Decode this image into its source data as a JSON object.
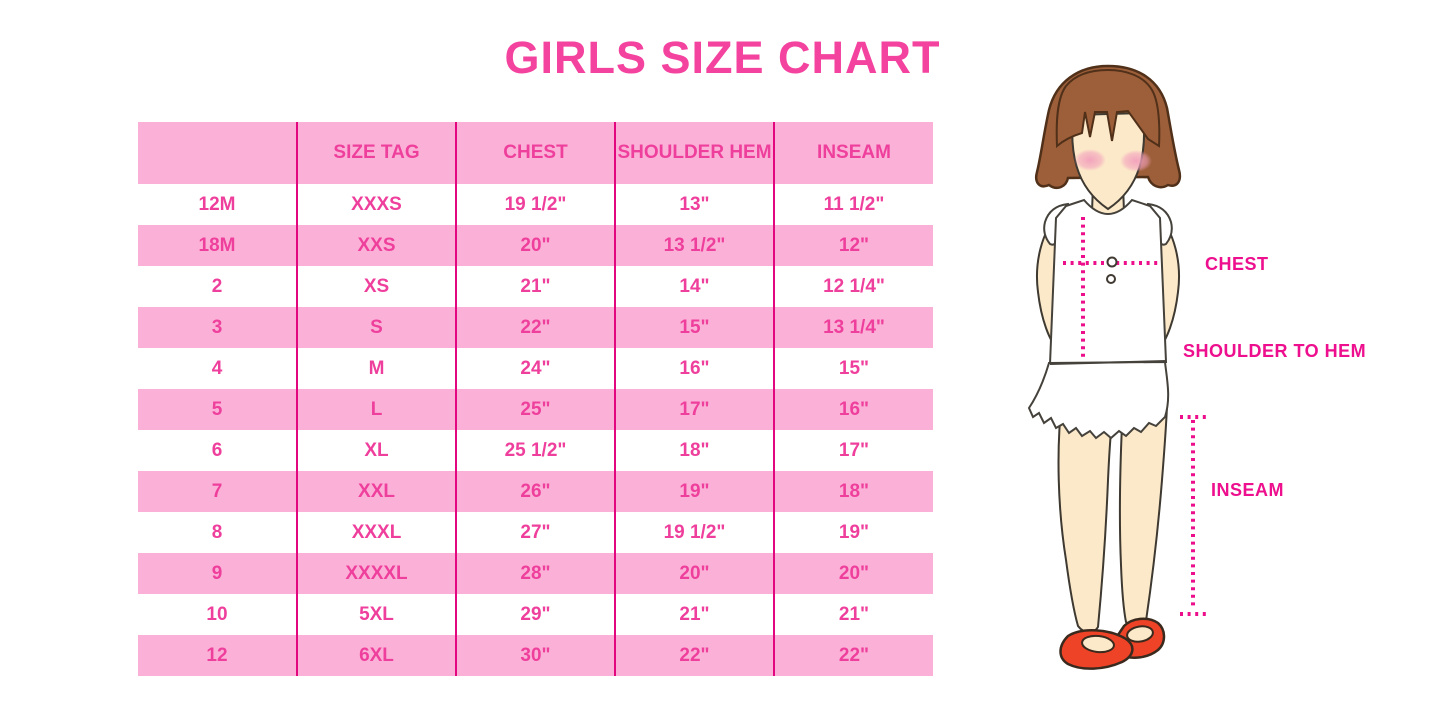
{
  "title": "GIRLS SIZE CHART",
  "chart_data": {
    "type": "table",
    "title": "GIRLS SIZE CHART",
    "columns": [
      "",
      "SIZE TAG",
      "CHEST",
      "SHOULDER HEM",
      "INSEAM"
    ],
    "rows": [
      [
        "12M",
        "XXXS",
        "19 1/2\"",
        "13\"",
        "11 1/2\""
      ],
      [
        "18M",
        "XXS",
        "20\"",
        "13 1/2\"",
        "12\""
      ],
      [
        "2",
        "XS",
        "21\"",
        "14\"",
        "12 1/4\""
      ],
      [
        "3",
        "S",
        "22\"",
        "15\"",
        "13 1/4\""
      ],
      [
        "4",
        "M",
        "24\"",
        "16\"",
        "15\""
      ],
      [
        "5",
        "L",
        "25\"",
        "17\"",
        "16\""
      ],
      [
        "6",
        "XL",
        "25 1/2\"",
        "18\"",
        "17\""
      ],
      [
        "7",
        "XXL",
        "26\"",
        "19\"",
        "18\""
      ],
      [
        "8",
        "XXXL",
        "27\"",
        "19 1/2\"",
        "19\""
      ],
      [
        "9",
        "XXXXL",
        "28\"",
        "20\"",
        "20\""
      ],
      [
        "10",
        "5XL",
        "29\"",
        "21\"",
        "21\""
      ],
      [
        "12",
        "6XL",
        "30\"",
        "22\"",
        "22\""
      ]
    ],
    "row_stripe": "alternating white / pink starting white",
    "annotations": [
      "CHEST",
      "SHOULDER TO HEM",
      "INSEAM"
    ]
  },
  "figure": {
    "labels": {
      "chest": "CHEST",
      "shoulder_to_hem": "SHOULDER TO HEM",
      "inseam": "INSEAM"
    }
  },
  "colors": {
    "title_pink": "#f4429f",
    "band_pink": "#fbb1d7",
    "cell_text_pink": "#ef3f9c",
    "divider_magenta": "#e2077f",
    "label_magenta": "#ed0f8d",
    "dotted_line_magenta": "#ec0e8a",
    "hair_brown": "#9d5f3a",
    "skin": "#fce9c9",
    "shoe_red": "#ee4327"
  }
}
